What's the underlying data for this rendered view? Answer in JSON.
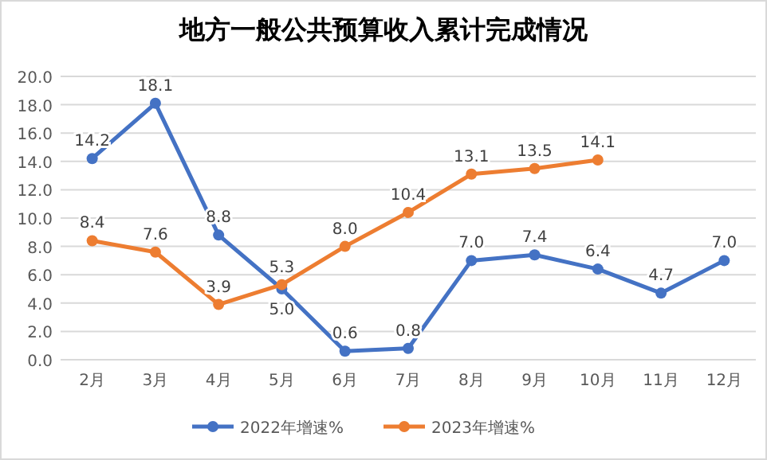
{
  "chart_data": {
    "type": "line",
    "title": "地方一般公共预算收入累计完成情况",
    "categories": [
      "2月",
      "3月",
      "4月",
      "5月",
      "6月",
      "7月",
      "8月",
      "9月",
      "10月",
      "11月",
      "12月"
    ],
    "series": [
      {
        "name": "2022年增速%",
        "color": "#4472c4",
        "values": [
          14.2,
          18.1,
          8.8,
          5.0,
          0.6,
          0.8,
          7.0,
          7.4,
          6.4,
          4.7,
          7.0
        ],
        "value_labels": [
          "14.2",
          "18.1",
          "8.8",
          "5.0",
          "0.6",
          "0.8",
          "7.0",
          "7.4",
          "6.4",
          "4.7",
          "7.0"
        ]
      },
      {
        "name": "2023年增速%",
        "color": "#ed7d31",
        "values": [
          8.4,
          7.6,
          3.9,
          5.3,
          8.0,
          10.4,
          13.1,
          13.5,
          14.1,
          null,
          null
        ],
        "value_labels": [
          "8.4",
          "7.6",
          "3.9",
          "5.3",
          "8.0",
          "10.4",
          "13.1",
          "13.5",
          "14.1",
          null,
          null
        ]
      }
    ],
    "ylim": [
      0,
      20
    ],
    "yticks": [
      {
        "value": 0,
        "label": "0.0"
      },
      {
        "value": 2,
        "label": "2.0"
      },
      {
        "value": 4,
        "label": "4.0"
      },
      {
        "value": 6,
        "label": "6.0"
      },
      {
        "value": 8,
        "label": "8.0"
      },
      {
        "value": 10,
        "label": "10.0"
      },
      {
        "value": 12,
        "label": "12.0"
      },
      {
        "value": 14,
        "label": "14.0"
      },
      {
        "value": 16,
        "label": "16.0"
      },
      {
        "value": 18,
        "label": "18.0"
      },
      {
        "value": 20,
        "label": "20.0"
      }
    ],
    "grid": "y",
    "legend": "bottom",
    "marker": "circle",
    "line_style": "solid"
  }
}
